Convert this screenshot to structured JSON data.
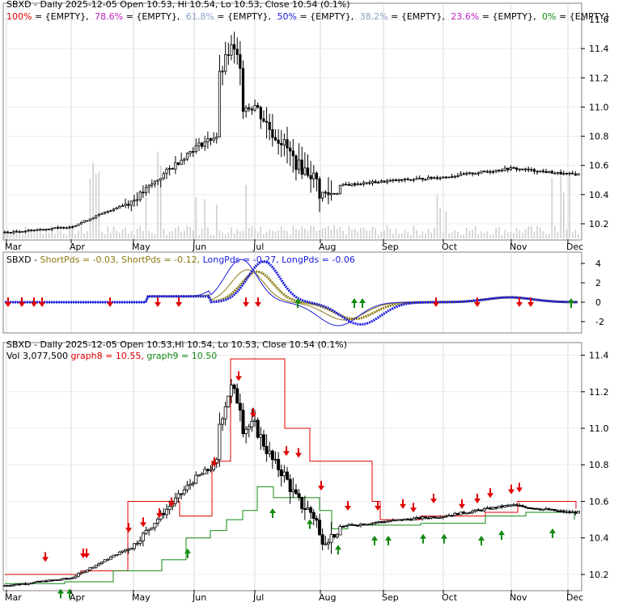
{
  "colors": {
    "price": "#000000",
    "red": "#e00000",
    "blue": "#1a1adc",
    "olive": "#8a7a10",
    "green": "#128a12",
    "volume": "#cfcfcf",
    "grid": "#d8d8d8",
    "fib": [
      "#e00000",
      "#c020c0",
      "#8aa0c8",
      "#1a1adc",
      "#8aa0c8",
      "#c020c0",
      "#128a12"
    ]
  },
  "months": [
    "Mar",
    "Apr",
    "May",
    "Jun",
    "Jul",
    "Aug",
    "Sep",
    "Oct",
    "Nov",
    "Dec"
  ],
  "panel1": {
    "fib_legend": [
      {
        "pct": "100%",
        "val": " = {EMPTY},"
      },
      {
        "pct": "78.6%",
        "val": " = {EMPTY},"
      },
      {
        "pct": "61.8%",
        "val": " = {EMPTY},"
      },
      {
        "pct": "50%",
        "val": " = {EMPTY},"
      },
      {
        "pct": "38.2%",
        "val": " = {EMPTY},"
      },
      {
        "pct": "23.6%",
        "val": " = {EMPTY},"
      },
      {
        "pct": "0%",
        "val": " = {EMPTY}"
      }
    ],
    "title": "SBXD - Daily 2025-12-05 Open 10.53, Hi 10.54, Lo 10.53, Close 10.54 (0.1%)",
    "yticks": [
      "11.6",
      "11.4",
      "11.2",
      "11.0",
      "10.8",
      "10.6",
      "10.4",
      "10.2"
    ]
  },
  "panel2": {
    "prefix": "SBXD - ",
    "legend": [
      {
        "text": "ShortPds = -0.03, ",
        "color": "olive"
      },
      {
        "text": "ShortPds = -0.12, ",
        "color": "olive"
      },
      {
        "text": "LongPds = -0.27, ",
        "color": "blue"
      },
      {
        "text": "LongPds = -0.06",
        "color": "blue"
      }
    ],
    "yticks": [
      "4",
      "2",
      "0",
      "-2"
    ]
  },
  "panel3": {
    "title": "SBXD - Daily 2025-12-05 Open 10.53,Hi 10.54, Lo 10.53, Close 10.54 (0.1%)",
    "legend_vol": "Vol 3,077,500 ",
    "legend_g8": "graph8 = 10.55,",
    "legend_g9": " graph9 = 10.50",
    "yticks": [
      "11.4",
      "11.2",
      "11.0",
      "10.8",
      "10.6",
      "10.4",
      "10.2"
    ]
  },
  "chart_data": [
    {
      "type": "candlestick",
      "title": "SBXD - Daily 2025-12-05 Open 10.53, Hi 10.54, Lo 10.53, Close 10.54 (0.1%)",
      "x_ticks": [
        "Mar",
        "Apr",
        "May",
        "Jun",
        "Jul",
        "Aug",
        "Sep",
        "Oct",
        "Nov",
        "Dec"
      ],
      "y_ticks": [
        10.2,
        10.4,
        10.6,
        10.8,
        11.0,
        11.2,
        11.4,
        11.6
      ],
      "ylim": [
        10.1,
        11.7
      ],
      "close_by_month": [
        {
          "x": "Mar",
          "y": 10.14
        },
        {
          "x": "Apr",
          "y": 10.18
        },
        {
          "x": "May",
          "y": 10.36
        },
        {
          "x": "Jun",
          "y": 10.72
        },
        {
          "x": "Jul",
          "y": 10.95
        },
        {
          "x": "Aug",
          "y": 10.45
        },
        {
          "x": "Sep",
          "y": 10.49
        },
        {
          "x": "Oct",
          "y": 10.52
        },
        {
          "x": "Nov",
          "y": 10.58
        },
        {
          "x": "Dec",
          "y": 10.54
        }
      ],
      "peak": {
        "x": "Jun",
        "y": 11.58
      }
    },
    {
      "type": "line",
      "series": [
        {
          "name": "ShortPds"
        },
        {
          "name": "ShortPds"
        },
        {
          "name": "LongPds"
        },
        {
          "name": "LongPds"
        }
      ],
      "y_ticks": [
        -2,
        0,
        2,
        4
      ],
      "ylim": [
        -3,
        5
      ],
      "peak_month": "Jul",
      "trough_month": "Aug"
    },
    {
      "type": "candlestick",
      "title": "SBXD - Daily 2025-12-05 Open 10.53,Hi 10.54, Lo 10.53, Close 10.54 (0.1%)",
      "series": [
        {
          "name": "graph8",
          "last": 10.55
        },
        {
          "name": "graph9",
          "last": 10.5
        }
      ],
      "volume": 3077500,
      "x_ticks": [
        "Mar",
        "Apr",
        "May",
        "Jun",
        "Jul",
        "Aug",
        "Sep",
        "Oct",
        "Nov",
        "Dec"
      ],
      "y_ticks": [
        10.2,
        10.4,
        10.6,
        10.8,
        11.0,
        11.2,
        11.4
      ],
      "ylim": [
        10.12,
        11.46
      ]
    }
  ]
}
